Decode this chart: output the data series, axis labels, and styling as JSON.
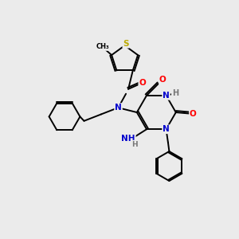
{
  "background_color": "#ebebeb",
  "bond_color": "#000000",
  "atom_colors": {
    "N": "#0000cc",
    "O": "#ff0000",
    "S": "#bbaa00",
    "C": "#000000",
    "H": "#777777"
  },
  "figure_size": [
    3.0,
    3.0
  ],
  "dpi": 100,
  "lw": 1.4,
  "fontsize": 7.5
}
